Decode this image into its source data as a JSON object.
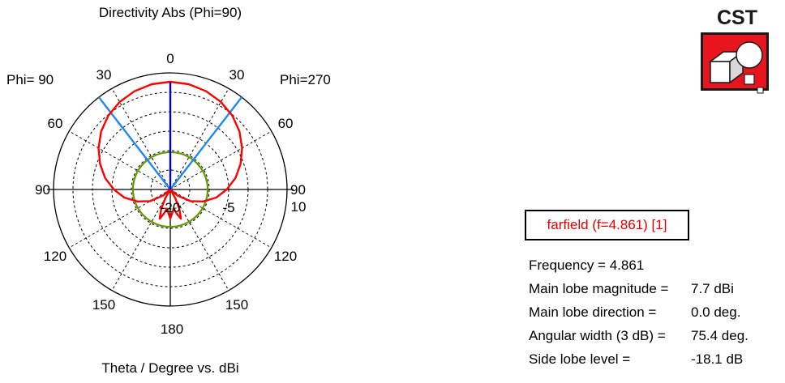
{
  "chart_data": {
    "type": "polar",
    "title": "Directivity Abs (Phi=90)",
    "xlabel": "Theta / Degree vs. dBi",
    "left_label": "Phi= 90",
    "right_label": "Phi=270",
    "angle_labels": [
      {
        "text": "0",
        "theta": 0,
        "side": "top"
      },
      {
        "text": "30",
        "theta": 30,
        "side": "left"
      },
      {
        "text": "30",
        "theta": 30,
        "side": "right"
      },
      {
        "text": "60",
        "theta": 60,
        "side": "left"
      },
      {
        "text": "60",
        "theta": 60,
        "side": "right"
      },
      {
        "text": "90",
        "theta": 90,
        "side": "left"
      },
      {
        "text": "90",
        "theta": 90,
        "side": "right"
      },
      {
        "text": "120",
        "theta": 120,
        "side": "left"
      },
      {
        "text": "120",
        "theta": 120,
        "side": "right"
      },
      {
        "text": "150",
        "theta": 150,
        "side": "left"
      },
      {
        "text": "150",
        "theta": 150,
        "side": "right"
      },
      {
        "text": "180",
        "theta": 180,
        "side": "bottom"
      }
    ],
    "radial_ticks": [
      "-20",
      "-5",
      "10"
    ],
    "rlim": [
      -20,
      10
    ],
    "grid_circles_db": [
      -20,
      -15,
      -10,
      -5,
      0,
      5,
      10
    ],
    "series": [
      {
        "color": "#ff0000",
        "theta_deg": [
          0,
          10,
          20,
          30,
          40,
          50,
          60,
          70,
          80,
          90,
          100,
          110,
          120,
          130,
          140,
          150,
          155,
          160,
          165,
          170,
          175,
          180
        ],
        "dbi": [
          7.7,
          7.5,
          6.9,
          6.0,
          4.8,
          3.2,
          1.3,
          -0.8,
          -3.0,
          -5.5,
          -8.0,
          -11.0,
          -14.0,
          -17.5,
          -20.0,
          -17.5,
          -14.5,
          -12.0,
          -13.5,
          -15.0,
          -14.0,
          -12.5
        ]
      }
    ],
    "main_lobe_direction_deg": 0,
    "beamwidth_deg": [
      -37.7,
      37.7
    ],
    "threshold_circle_db": -10.4,
    "colors": {
      "pattern": "#ff0000",
      "main_lobe_line": "#0000cc",
      "beamwidth_lines": "#2288ee",
      "threshold_circle": "#669900",
      "grid": "#000000"
    }
  },
  "legend": {
    "label": "farfield (f=4.861) [1]",
    "color": "#e00000"
  },
  "info": [
    {
      "key": "Frequency = 4.861",
      "value": ""
    },
    {
      "key": "Main lobe magnitude = ",
      "value": "7.7 dBi"
    },
    {
      "key": "Main lobe direction = ",
      "value": "0.0 deg."
    },
    {
      "key": "Angular width (3 dB) = ",
      "value": "75.4 deg."
    },
    {
      "key": "Side lobe level = ",
      "value": "-18.1 dB"
    }
  ],
  "logo": {
    "text": "CST",
    "colors": {
      "red": "#e8151f",
      "dark": "#1a1a1a"
    }
  }
}
